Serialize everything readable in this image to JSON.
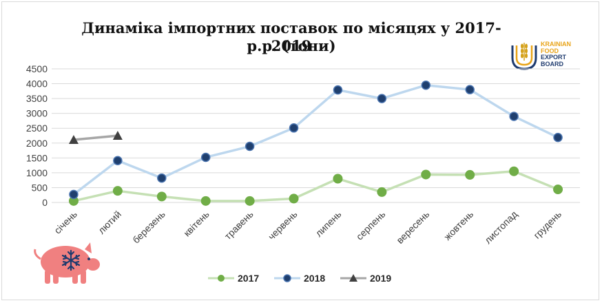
{
  "chart_data": {
    "type": "line",
    "title_line1": "Динаміка імпортних поставок по місяцях у 2017-2019",
    "title_line2": "р.р. (тони)",
    "categories": [
      "січень",
      "лютий",
      "березень",
      "квітень",
      "травень",
      "червень",
      "липень",
      "серпень",
      "вересень",
      "жовтень",
      "листопад",
      "грудень"
    ],
    "ylim": [
      0,
      4500
    ],
    "yticks": [
      0,
      500,
      1000,
      1500,
      2000,
      2500,
      3000,
      3500,
      4000,
      4500
    ],
    "grid": true,
    "legend_position": "bottom",
    "series": [
      {
        "name": "2017",
        "color": "#70ad47",
        "line_color": "#c5e0b4",
        "marker": "circle",
        "values": [
          50,
          390,
          200,
          50,
          50,
          130,
          800,
          350,
          940,
          930,
          1050,
          440
        ]
      },
      {
        "name": "2018",
        "color": "#1f3f6e",
        "line_color": "#bdd7ee",
        "marker": "circle-outlined",
        "values": [
          270,
          1410,
          820,
          1520,
          1890,
          2510,
          3790,
          3500,
          3950,
          3800,
          2900,
          2190
        ]
      },
      {
        "name": "2019",
        "color": "#404040",
        "line_color": "#a6a6a6",
        "marker": "triangle",
        "values": [
          2110,
          2250,
          null,
          null,
          null,
          null,
          null,
          null,
          null,
          null,
          null,
          null
        ]
      }
    ]
  },
  "logo": {
    "lines": [
      "KRAINIAN",
      "FOOD",
      "EXPORT",
      "BOARD"
    ],
    "colors": {
      "navy": "#1f3b6e",
      "gold": "#e8a317",
      "grain": "#d4a017"
    }
  },
  "pig_icon": {
    "name": "pig-icon",
    "color": "#f08080",
    "snowflake_color": "#1f3b6e"
  }
}
